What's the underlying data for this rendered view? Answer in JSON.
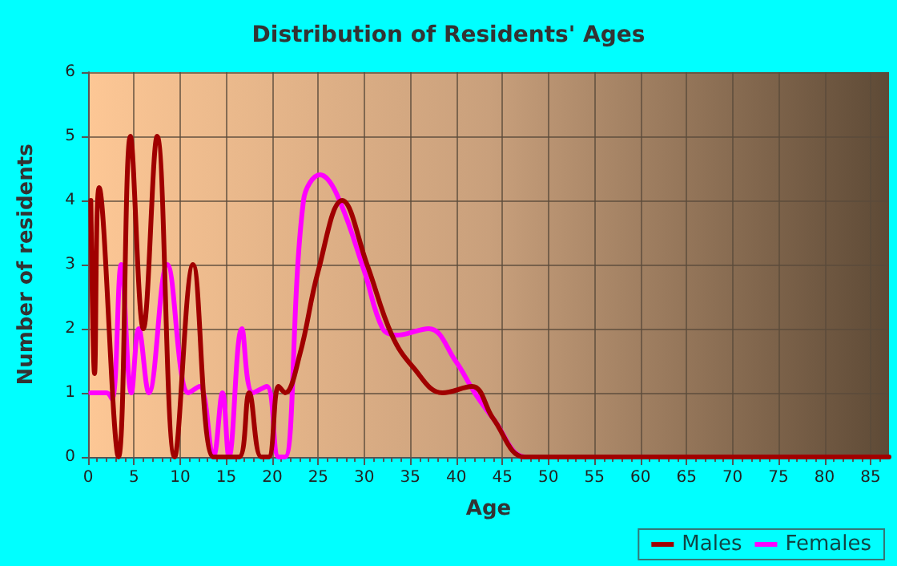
{
  "chart_data": {
    "type": "line",
    "title": "Distribution of Residents' Ages",
    "xlabel": "Age",
    "ylabel": "Number of residents",
    "series": [
      {
        "name": "Males",
        "color": "#a00000",
        "x": [
          0.3,
          0.7,
          1.2,
          3.3,
          4.6,
          6,
          7.5,
          9.4,
          11.4,
          13.6,
          15,
          16.4,
          17.5,
          18.8,
          19.6,
          20.7,
          21.4,
          23,
          25,
          27.6,
          30.3,
          33,
          35.3,
          38.5,
          41.7,
          44,
          47.4,
          50,
          60,
          70,
          80,
          87
        ],
        "values": [
          4,
          1.3,
          4.2,
          0,
          5,
          2,
          5,
          0,
          3,
          0,
          0,
          0,
          1,
          0,
          0,
          1.1,
          1,
          1.6,
          2.9,
          4,
          3,
          1.9,
          1.4,
          1,
          1.1,
          0.6,
          0,
          0,
          0,
          0,
          0,
          0
        ]
      },
      {
        "name": "Females",
        "color": "#ff00ff",
        "x": [
          0.3,
          2,
          2.6,
          3.6,
          4.7,
          5.5,
          6.6,
          8.6,
          10.9,
          12.1,
          13.6,
          14.6,
          15.3,
          16.7,
          17.9,
          19.4,
          20.7,
          21.4,
          23.4,
          25.2,
          27,
          30,
          32,
          33.5,
          37,
          39.9,
          42,
          44,
          47.5,
          50
        ],
        "values": [
          1,
          1,
          0.9,
          3,
          1,
          2,
          1,
          3,
          1,
          1.1,
          0,
          1,
          0,
          2,
          1,
          1.1,
          0,
          0,
          4,
          4.4,
          4.1,
          2.9,
          2,
          1.9,
          2,
          1.5,
          1,
          0.6,
          0,
          0
        ]
      }
    ],
    "xlim": [
      0,
      87
    ],
    "xticks": [
      0,
      5,
      10,
      15,
      20,
      25,
      30,
      35,
      40,
      45,
      50,
      55,
      60,
      65,
      70,
      75,
      80,
      85
    ],
    "ylim": [
      0,
      6
    ],
    "yticks": [
      0,
      1,
      2,
      3,
      4,
      5,
      6
    ],
    "grid": true,
    "legend": "bottom right",
    "marker": "none",
    "line_style": "solid"
  }
}
